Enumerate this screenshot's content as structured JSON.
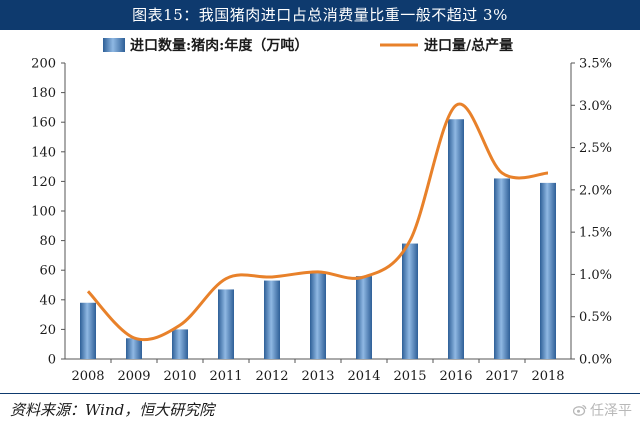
{
  "title": "图表15：我国猪肉进口占总消费量比重一般不超过 3%",
  "source": "资料来源：Wind，恒大研究院",
  "watermark": "任泽平",
  "colors": {
    "bar": "#4a86c4",
    "bar_dark": "#2e5f97",
    "line": "#e8812a",
    "title_bg": "#0e3a6e"
  },
  "chart_data": {
    "type": "bar",
    "categories": [
      "2008",
      "2009",
      "2010",
      "2011",
      "2012",
      "2013",
      "2014",
      "2015",
      "2016",
      "2017",
      "2018"
    ],
    "series": [
      {
        "name": "进口数量:猪肉:年度（万吨）",
        "type": "bar",
        "axis": "left",
        "values": [
          38,
          14,
          20,
          47,
          53,
          59,
          56,
          78,
          162,
          122,
          119
        ]
      },
      {
        "name": "进口量/总产量",
        "type": "line",
        "axis": "right",
        "values": [
          0.8,
          0.25,
          0.4,
          0.95,
          0.97,
          1.03,
          0.97,
          1.4,
          3.0,
          2.2,
          2.2
        ]
      }
    ],
    "y_left": {
      "min": 0,
      "max": 200,
      "ticks": [
        "0",
        "20",
        "40",
        "60",
        "80",
        "100",
        "120",
        "140",
        "160",
        "180",
        "200"
      ]
    },
    "y_right": {
      "min": 0,
      "max": 3.5,
      "ticks": [
        "0.0%",
        "0.5%",
        "1.0%",
        "1.5%",
        "2.0%",
        "2.5%",
        "3.0%",
        "3.5%"
      ]
    },
    "legend_position": "top",
    "grid": false
  }
}
